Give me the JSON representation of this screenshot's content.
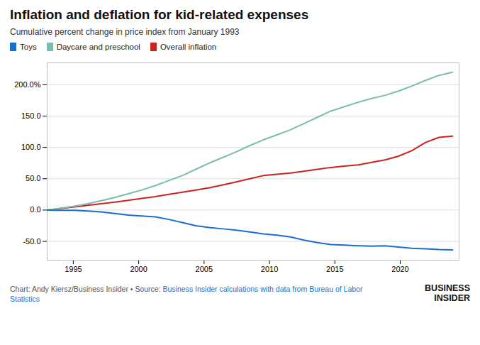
{
  "chart_data": {
    "type": "line",
    "title": "Inflation and deflation for kid-related expenses",
    "subtitle": "Cumulative percent change in price index from January 1993",
    "annotations": [
      "Chart: Andy Kiersz/Business Insider • Source: ",
      "Business Insider calculations with data from Bureau of Labor Statistics",
      "BUSINESS\nINSIDER"
    ],
    "x": [
      1993,
      1994.0333333,
      1995.0666667,
      1996.1,
      1997.1333333,
      1998.1666667,
      1999.2,
      2000.2333333,
      2001.2666667,
      2002.3,
      2003.3333333,
      2004.3666667,
      2005.4,
      2006.4333333,
      2007.4666667,
      2008.5,
      2009.5333333,
      2010.5666667,
      2011.6,
      2012.6333333,
      2013.6666667,
      2014.7,
      2015.7333333,
      2016.7666667,
      2017.8,
      2018.8333333,
      2019.8666667,
      2020.9,
      2021.9333333,
      2022.9666667,
      2024
    ],
    "series": [
      {
        "name": "Toys",
        "color": "#1a6fce",
        "values": [
          0,
          -0.5,
          -0.3,
          -1.5,
          -3.0,
          -5.5,
          -8.0,
          -9.5,
          -11.0,
          -15.0,
          -20.0,
          -25.0,
          -28.0,
          -30.0,
          -32.0,
          -35.0,
          -38.0,
          -40.0,
          -43.0,
          -48.0,
          -52.0,
          -55.0,
          -56.0,
          -57.0,
          -57.5,
          -57.0,
          -59.0,
          -61.0,
          -62.0,
          -63.0,
          -63.5
        ]
      },
      {
        "name": "Daycare and preschool",
        "color": "#7bbcb0",
        "values": [
          0,
          3.0,
          6.0,
          10.0,
          15.0,
          20.0,
          26.0,
          32.0,
          39.0,
          47.0,
          55.0,
          65.0,
          75.0,
          84.0,
          93.0,
          103.0,
          112.0,
          120.0,
          128.0,
          138.0,
          148.0,
          158.0,
          165.0,
          172.0,
          178.0,
          183.0,
          190.0,
          198.0,
          207.0,
          215.0,
          220.0
        ]
      },
      {
        "name": "Overall inflation",
        "color": "#cc2222",
        "values": [
          0,
          2.5,
          5.0,
          7.5,
          10.0,
          12.5,
          15.5,
          18.5,
          21.5,
          25.0,
          28.5,
          32.0,
          35.5,
          40.0,
          45.0,
          50.0,
          55.0,
          57.0,
          59.0,
          62.0,
          65.0,
          68.0,
          70.0,
          72.0,
          76.0,
          80.0,
          86.0,
          95.0,
          108.0,
          116.0,
          118.0
        ]
      }
    ],
    "xlim": [
      1993.0,
      2024.5
    ],
    "xticks": [
      1995,
      2000,
      2005,
      2010,
      2015,
      2020
    ],
    "ylim": [
      -80,
      235
    ],
    "yticks": [
      {
        "value": -50.0,
        "label": "-50.0"
      },
      {
        "value": 0.0,
        "label": "0.0"
      },
      {
        "value": 50.0,
        "label": "50.0"
      },
      {
        "value": 100.0,
        "label": "100.0"
      },
      {
        "value": 150.0,
        "label": "150.0"
      },
      {
        "value": 200.0,
        "label": "200.0%"
      }
    ],
    "grid": true
  }
}
